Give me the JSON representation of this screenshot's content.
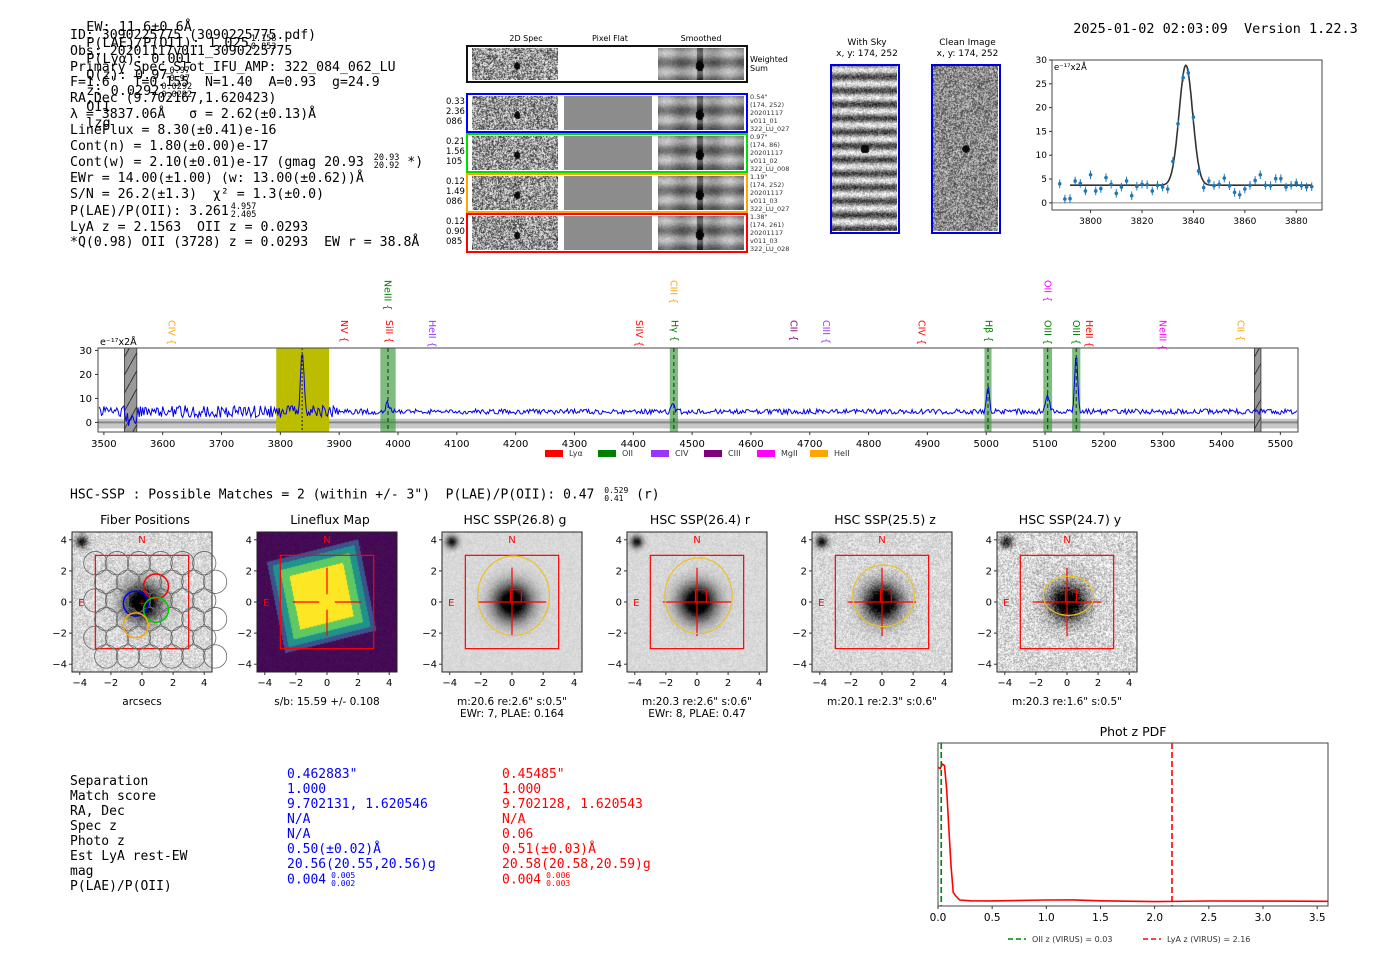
{
  "header": {
    "ew": "EW: 11.6±0.6Å",
    "plae_label": "P(LAE)/P(OII): 1.025",
    "plae_hi": "1.158",
    "plae_lo": "0.853",
    "plya": "P(Lyα): 0.001",
    "qz_label": "Q(z): 0.97",
    "qz_hi": "0.97",
    "qz_lo": "0.97",
    "z_label": "z: 0.0292",
    "z_hi": "0.0292",
    "z_lo": "0.0292",
    "line": "OII",
    "flag": "lzg",
    "timestamp": "2025-01-02 02:03:09",
    "version": "Version 1.22.3"
  },
  "info": {
    "id": "ID: 3090225775 (3090225775.pdf)",
    "obs": "Obs: 20201117v011_3090225775",
    "primary": "Primary Spec_Slot_IFU_AMP: 322_084_062_LU",
    "params": "F=1.6\"  T=0.155  N=1.40  A=0.93  g=24.9",
    "radec": "RA,Dec (9.702167,1.620423)",
    "lambda": "λ = 3837.06Å   σ = 2.62(±0.13)Å",
    "lineflux": "LineFlux = 8.30(±0.41)e-16",
    "cont_n": "Cont(n) = 1.80(±0.00)e-17",
    "cont_w": "Cont(w) = 2.10(±0.01)e-17 (gmag 20.93",
    "gmag_hi": "20.93",
    "gmag_lo": "20.92",
    "cont_w_tail": " *)",
    "ewr": "EWr = 14.00(±1.00) (w: 13.00(±0.62))Å",
    "sn": "S/N = 26.2(±1.3)  χ² = 1.3(±0.0)",
    "plae": "P(LAE)/P(OII): 3.261",
    "plae_hi": "4.957",
    "plae_lo": "2.405",
    "lya_z": "LyA z = 2.1563  OII z = 0.0293",
    "q_line": "*Q(0.98) OII (3728) z = 0.0293  EW r = 38.8Å"
  },
  "spec2d": {
    "columns": [
      "2D Spec",
      "Pixel Flat",
      "Smoothed"
    ],
    "weighted_label": "Weighted\nSum",
    "rows": [
      {
        "left": [
          "0.33",
          "2.36",
          "086"
        ],
        "right": [
          "0.54\"",
          "(174, 252)",
          "20201117",
          "v011_01",
          "322_LU_027"
        ],
        "color": "#0000ff"
      },
      {
        "left": [
          "0.21",
          "1.56",
          "105"
        ],
        "right": [
          "0.97\"",
          "(174, 86)",
          "20201117",
          "v011_02",
          "322_LU_008"
        ],
        "color": "#00dd00"
      },
      {
        "left": [
          "0.12",
          "1.49",
          "086"
        ],
        "right": [
          "1.19\"",
          "(174, 252)",
          "20201117",
          "v011_03",
          "322_LU_027"
        ],
        "color": "#ffa500"
      },
      {
        "left": [
          "0.12",
          "0.90",
          "085"
        ],
        "right": [
          "1.38\"",
          "(174, 261)",
          "20201117",
          "v011_03",
          "322_LU_028"
        ],
        "color": "#ff0000"
      }
    ]
  },
  "fiber_cutouts": [
    {
      "title": "With Sky",
      "coords": "x, y: 174, 252"
    },
    {
      "title": "Clean Image",
      "coords": "x, y: 174, 252"
    }
  ],
  "chart_data": [
    {
      "id": "line-fit",
      "type": "scatter",
      "title": "",
      "ylabel": "e⁻¹⁷x2Å",
      "xlim": [
        3785,
        3890
      ],
      "ylim": [
        -1.5,
        30
      ],
      "xticks": [
        3800,
        3820,
        3840,
        3860,
        3880
      ],
      "yticks": [
        0,
        5,
        10,
        15,
        20,
        25,
        30
      ],
      "x": [
        3788,
        3790,
        3792,
        3794,
        3796,
        3798,
        3800,
        3802,
        3804,
        3806,
        3808,
        3810,
        3812,
        3814,
        3816,
        3818,
        3820,
        3822,
        3824,
        3826,
        3828,
        3830,
        3832,
        3834,
        3836,
        3838,
        3840,
        3842,
        3844,
        3846,
        3848,
        3850,
        3852,
        3854,
        3856,
        3858,
        3860,
        3862,
        3864,
        3866,
        3868,
        3870,
        3872,
        3874,
        3876,
        3878,
        3880,
        3882,
        3884,
        3886
      ],
      "y": [
        4.0,
        0.8,
        0.9,
        4.6,
        4.1,
        2.5,
        5.9,
        2.5,
        3.0,
        5.3,
        3.9,
        2.0,
        3.3,
        4.6,
        1.5,
        3.5,
        3.9,
        3.8,
        2.5,
        3.7,
        3.3,
        2.9,
        8.7,
        16.6,
        26.3,
        27.3,
        18.0,
        6.7,
        3.2,
        4.6,
        3.6,
        3.9,
        5.2,
        3.6,
        2.2,
        1.7,
        2.9,
        3.7,
        4.7,
        5.9,
        3.7,
        3.6,
        5.1,
        5.1,
        3.3,
        3.7,
        4.2,
        3.6,
        3.3,
        3.4
      ],
      "fit": {
        "continuum": 3.7,
        "amplitude": 25.2,
        "center": 3837.06,
        "sigma": 2.62,
        "xrange": [
          3792,
          3886
        ]
      },
      "series_color": "#1f77b4",
      "fit_color": "#333333"
    },
    {
      "id": "full-spectrum",
      "type": "line",
      "ylabel": "e⁻¹⁷x2Å",
      "xlim": [
        3490,
        5530
      ],
      "ylim": [
        -4,
        31
      ],
      "xticks": [
        3500,
        3600,
        3700,
        3800,
        3900,
        4000,
        4100,
        4200,
        4300,
        4400,
        4500,
        4600,
        4700,
        4800,
        4900,
        5000,
        5100,
        5200,
        5300,
        5400,
        5500
      ],
      "yticks": [
        0,
        10,
        20,
        30
      ],
      "continuum": 4.5,
      "emission_lines": [
        {
          "center": 3837,
          "peak": 27,
          "sigma": 2.6
        },
        {
          "center": 3982,
          "peak": 3.5,
          "sigma": 3
        },
        {
          "center": 4468,
          "peak": 3.5,
          "sigma": 2.5
        },
        {
          "center": 5003,
          "peak": 10,
          "sigma": 2.5
        },
        {
          "center": 5104,
          "peak": 7.5,
          "sigma": 3
        },
        {
          "center": 5153,
          "peak": 24,
          "sigma": 2.5
        }
      ],
      "highlight_band": {
        "from": 3793,
        "to": 3883,
        "color": "#bdbd00"
      },
      "line_bands": [
        {
          "from": 3970,
          "to": 3996
        },
        {
          "from": 4462,
          "to": 4476
        },
        {
          "from": 4997,
          "to": 5009
        },
        {
          "from": 5097,
          "to": 5112
        },
        {
          "from": 5146,
          "to": 5160
        }
      ],
      "masked_bands": [
        {
          "from": 3535,
          "to": 3556
        },
        {
          "from": 5456,
          "to": 5467
        }
      ],
      "line_labels": [
        {
          "name": "CIV",
          "x": 3615,
          "color": "#ffa500",
          "level": 1
        },
        {
          "name": "NV",
          "x": 3908,
          "color": "#ff0000",
          "level": 1
        },
        {
          "name": "NeIII",
          "x": 3982,
          "color": "#008000",
          "level": 0
        },
        {
          "name": "SiII",
          "x": 3985,
          "color": "#ff0000",
          "level": 1
        },
        {
          "name": "HeII",
          "x": 4058,
          "color": "#9933ff",
          "level": 1
        },
        {
          "name": "SiIV",
          "x": 4410,
          "color": "#ff0000",
          "level": 1
        },
        {
          "name": "CIII",
          "x": 4468,
          "color": "#ffa500",
          "level": 0
        },
        {
          "name": "Hγ",
          "x": 4470,
          "color": "#008000",
          "level": 1
        },
        {
          "name": "CII",
          "x": 4672,
          "color": "#800080",
          "level": 1
        },
        {
          "name": "CIII",
          "x": 4728,
          "color": "#9933ff",
          "level": 1
        },
        {
          "name": "CIV",
          "x": 4890,
          "color": "#ff0000",
          "level": 1
        },
        {
          "name": "Hβ",
          "x": 5004,
          "color": "#008000",
          "level": 1
        },
        {
          "name": "OII",
          "x": 5104,
          "color": "#ff00ff",
          "level": 0
        },
        {
          "name": "OIII",
          "x": 5104,
          "color": "#008000",
          "level": 1
        },
        {
          "name": "OIII",
          "x": 5153,
          "color": "#008000",
          "level": 1
        },
        {
          "name": "HeII",
          "x": 5175,
          "color": "#ff0000",
          "level": 1
        },
        {
          "name": "NeIII",
          "x": 5300,
          "color": "#ff00ff",
          "level": 1
        },
        {
          "name": "CII",
          "x": 5432,
          "color": "#ffa500",
          "level": 1
        }
      ],
      "legend": [
        {
          "label": "Lyα",
          "color": "#ff0000"
        },
        {
          "label": "OII",
          "color": "#008000"
        },
        {
          "label": "CIV",
          "color": "#9933ff"
        },
        {
          "label": "CIII",
          "color": "#800080"
        },
        {
          "label": "MgII",
          "color": "#ff00ff"
        },
        {
          "label": "HeII",
          "color": "#ffa500"
        }
      ]
    },
    {
      "id": "phot-z-pdf",
      "type": "line",
      "title": "Phot z PDF",
      "xlim": [
        0.0,
        3.6
      ],
      "xticks": [
        0.0,
        0.5,
        1.0,
        1.5,
        2.0,
        2.5,
        3.0,
        3.5
      ],
      "xticklabels": [
        "0.0",
        "0.5",
        "1.0",
        "1.5",
        "2.0",
        "2.5",
        "3.0",
        "3.5"
      ],
      "x": [
        0.0,
        0.02,
        0.04,
        0.06,
        0.08,
        0.1,
        0.12,
        0.14,
        0.16,
        0.2,
        0.3,
        0.5,
        1.0,
        1.25,
        1.5,
        2.0,
        2.5,
        3.0,
        3.6
      ],
      "y": [
        0.9,
        0.89,
        0.92,
        0.91,
        0.75,
        0.5,
        0.25,
        0.07,
        0.05,
        0.02,
        0.015,
        0.013,
        0.018,
        0.02,
        0.014,
        0.012,
        0.011,
        0.01,
        0.01
      ],
      "vlines": [
        {
          "x": 0.03,
          "color": "#008000",
          "label": "OII z (VIRUS) = 0.03"
        },
        {
          "x": 2.16,
          "color": "#ff0000",
          "label": "LyA z (VIRUS) = 2.16"
        }
      ]
    }
  ],
  "hsc": {
    "summary": "HSC-SSP : Possible Matches = 2 (within +/- 3\")  P(LAE)/P(OII): 0.47",
    "summary_hi": "0.529",
    "summary_lo": "0.41",
    "summary_tail": " (r)",
    "axis_ticks": [
      "−4",
      "−2",
      "0",
      "2",
      "4"
    ],
    "north": "N",
    "east": "E",
    "panels": [
      {
        "title": "Fiber Positions",
        "caption": [
          "arcsecs"
        ],
        "kind": "fiber"
      },
      {
        "title": "Lineflux Map",
        "caption": [
          "s/b: 15.59 +/- 0.108"
        ],
        "kind": "lineflux"
      },
      {
        "title": "HSC SSP(26.8) g",
        "caption": [
          "m:20.6  re:2.6\"  s:0.5\"",
          "EWr: 7, PLAE: 0.164"
        ],
        "kind": "hsc",
        "ellipse": [
          1.28,
          1.42
        ],
        "noise": 0.1
      },
      {
        "title": "HSC SSP(26.4) r",
        "caption": [
          "m:20.3  re:2.6\"  s:0.6\"",
          "EWr: 8, PLAE: 0.47"
        ],
        "kind": "hsc",
        "ellipse": [
          1.2,
          1.35
        ],
        "noise": 0.12
      },
      {
        "title": "HSC SSP(25.5) z",
        "caption": [
          "m:20.1  re:2.3\"  s:0.6\""
        ],
        "kind": "hsc",
        "ellipse": [
          1.1,
          1.1
        ],
        "noise": 0.25
      },
      {
        "title": "HSC SSP(24.7) y",
        "caption": [
          "m:20.3  re:1.6\"  s:0.5\""
        ],
        "kind": "hsc",
        "ellipse": [
          0.9,
          0.7
        ],
        "noise": 0.45
      }
    ]
  },
  "matches": {
    "labels": [
      "Separation",
      "Match score",
      "RA, Dec",
      "Spec z",
      "Photo z",
      "Est LyA rest-EW",
      "mag",
      "P(LAE)/P(OII)"
    ],
    "columns": [
      {
        "color": "#0000ff",
        "values": [
          "0.462883\"",
          "1.000",
          "9.702131, 1.620546",
          "N/A",
          "N/A",
          "0.50(±0.02)Å",
          "20.56(20.55,20.56)g",
          "0.004"
        ],
        "plae_hi": "0.005",
        "plae_lo": "0.002"
      },
      {
        "color": "#ff0000",
        "values": [
          "0.45485\"",
          "1.000",
          "9.702128, 1.620543",
          "N/A",
          "0.06",
          "0.51(±0.03)Å",
          "20.58(20.58,20.59)g",
          "0.004"
        ],
        "plae_hi": "0.006",
        "plae_lo": "0.003"
      }
    ]
  }
}
